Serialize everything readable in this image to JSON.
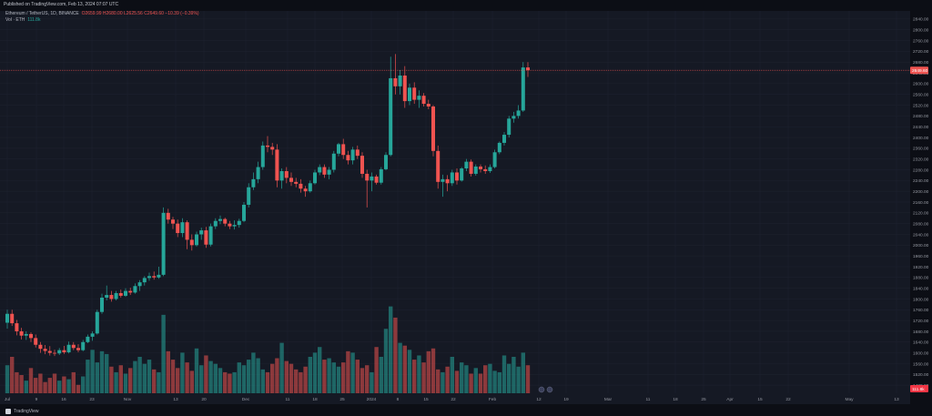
{
  "header": {
    "published": "Published on TradingView.com, Feb 13, 2024 07:07 UTC"
  },
  "legend": {
    "symbol": "Ethereum / TetherUS, 1D, BINANCE",
    "ohlc": "O2659.99 H2680.00 L2625.56 C2649.60 −10.39 (−0.39%)",
    "volume_label": "Vol · ETH",
    "volume_value": "111.8k"
  },
  "footer": {
    "brand": "TradingView"
  },
  "colors": {
    "up": "#26a69a",
    "down": "#ef5350",
    "bg": "#151924",
    "grid": "#1f2330",
    "axis_text": "#9598a1",
    "price_line": "#ef5350"
  },
  "chart_data": {
    "type": "candlestick",
    "y_axis_ticks": [
      1480,
      1520,
      1560,
      1600,
      1640,
      1680,
      1720,
      1760,
      1800,
      1840,
      1880,
      1920,
      1960,
      2000,
      2040,
      2080,
      2120,
      2160,
      2200,
      2240,
      2280,
      2320,
      2360,
      2400,
      2440,
      2480,
      2520,
      2560,
      2600,
      2640,
      2680,
      2720,
      2760,
      2800,
      2840
    ],
    "ylim": [
      1450,
      2870
    ],
    "x_axis_ticks": [
      "Jul",
      "9",
      "16",
      "23",
      "Nov",
      "13",
      "20",
      "Dec",
      "11",
      "18",
      "25",
      "2024",
      "8",
      "15",
      "22",
      "Feb",
      "12",
      "19",
      "Mar",
      "11",
      "18",
      "25",
      "Apr",
      "15",
      "22",
      "May",
      "13"
    ],
    "last_price_label": "2649.60",
    "volume_label": "111.8k",
    "candles": [
      {
        "o": 1712,
        "h": 1760,
        "l": 1690,
        "c": 1745
      },
      {
        "o": 1745,
        "h": 1760,
        "l": 1700,
        "c": 1710
      },
      {
        "o": 1710,
        "h": 1722,
        "l": 1665,
        "c": 1680
      },
      {
        "o": 1680,
        "h": 1693,
        "l": 1650,
        "c": 1664
      },
      {
        "o": 1664,
        "h": 1680,
        "l": 1648,
        "c": 1670
      },
      {
        "o": 1670,
        "h": 1676,
        "l": 1640,
        "c": 1655
      },
      {
        "o": 1655,
        "h": 1668,
        "l": 1620,
        "c": 1630
      },
      {
        "o": 1630,
        "h": 1640,
        "l": 1600,
        "c": 1615
      },
      {
        "o": 1615,
        "h": 1629,
        "l": 1595,
        "c": 1607
      },
      {
        "o": 1607,
        "h": 1625,
        "l": 1590,
        "c": 1600
      },
      {
        "o": 1600,
        "h": 1612,
        "l": 1588,
        "c": 1598
      },
      {
        "o": 1598,
        "h": 1618,
        "l": 1592,
        "c": 1610
      },
      {
        "o": 1610,
        "h": 1626,
        "l": 1596,
        "c": 1602
      },
      {
        "o": 1602,
        "h": 1642,
        "l": 1598,
        "c": 1630
      },
      {
        "o": 1630,
        "h": 1640,
        "l": 1610,
        "c": 1618
      },
      {
        "o": 1618,
        "h": 1632,
        "l": 1602,
        "c": 1610
      },
      {
        "o": 1610,
        "h": 1648,
        "l": 1606,
        "c": 1640
      },
      {
        "o": 1640,
        "h": 1668,
        "l": 1636,
        "c": 1660
      },
      {
        "o": 1660,
        "h": 1680,
        "l": 1645,
        "c": 1672
      },
      {
        "o": 1672,
        "h": 1760,
        "l": 1668,
        "c": 1752
      },
      {
        "o": 1752,
        "h": 1820,
        "l": 1745,
        "c": 1805
      },
      {
        "o": 1805,
        "h": 1850,
        "l": 1795,
        "c": 1815
      },
      {
        "o": 1815,
        "h": 1830,
        "l": 1790,
        "c": 1800
      },
      {
        "o": 1800,
        "h": 1830,
        "l": 1795,
        "c": 1822
      },
      {
        "o": 1822,
        "h": 1835,
        "l": 1805,
        "c": 1812
      },
      {
        "o": 1812,
        "h": 1840,
        "l": 1808,
        "c": 1830
      },
      {
        "o": 1830,
        "h": 1842,
        "l": 1815,
        "c": 1824
      },
      {
        "o": 1824,
        "h": 1858,
        "l": 1820,
        "c": 1848
      },
      {
        "o": 1848,
        "h": 1870,
        "l": 1830,
        "c": 1862
      },
      {
        "o": 1862,
        "h": 1885,
        "l": 1850,
        "c": 1878
      },
      {
        "o": 1878,
        "h": 1898,
        "l": 1868,
        "c": 1885
      },
      {
        "o": 1885,
        "h": 1902,
        "l": 1872,
        "c": 1880
      },
      {
        "o": 1880,
        "h": 1920,
        "l": 1875,
        "c": 1890
      },
      {
        "o": 1890,
        "h": 2140,
        "l": 1885,
        "c": 2120
      },
      {
        "o": 2120,
        "h": 2135,
        "l": 2080,
        "c": 2095
      },
      {
        "o": 2095,
        "h": 2105,
        "l": 2060,
        "c": 2080
      },
      {
        "o": 2080,
        "h": 2095,
        "l": 2030,
        "c": 2045
      },
      {
        "o": 2045,
        "h": 2100,
        "l": 2030,
        "c": 2085
      },
      {
        "o": 2085,
        "h": 2092,
        "l": 1985,
        "c": 2020
      },
      {
        "o": 2020,
        "h": 2040,
        "l": 1980,
        "c": 2000
      },
      {
        "o": 2000,
        "h": 2050,
        "l": 1995,
        "c": 2040
      },
      {
        "o": 2040,
        "h": 2065,
        "l": 2020,
        "c": 2055
      },
      {
        "o": 2055,
        "h": 2068,
        "l": 1990,
        "c": 2002
      },
      {
        "o": 2002,
        "h": 2080,
        "l": 1995,
        "c": 2070
      },
      {
        "o": 2070,
        "h": 2100,
        "l": 2060,
        "c": 2090
      },
      {
        "o": 2090,
        "h": 2110,
        "l": 2078,
        "c": 2097
      },
      {
        "o": 2097,
        "h": 2102,
        "l": 2070,
        "c": 2080
      },
      {
        "o": 2080,
        "h": 2090,
        "l": 2060,
        "c": 2070
      },
      {
        "o": 2070,
        "h": 2092,
        "l": 2058,
        "c": 2075
      },
      {
        "o": 2075,
        "h": 2098,
        "l": 2065,
        "c": 2090
      },
      {
        "o": 2090,
        "h": 2160,
        "l": 2085,
        "c": 2150
      },
      {
        "o": 2150,
        "h": 2230,
        "l": 2140,
        "c": 2215
      },
      {
        "o": 2215,
        "h": 2270,
        "l": 2205,
        "c": 2245
      },
      {
        "o": 2245,
        "h": 2310,
        "l": 2230,
        "c": 2290
      },
      {
        "o": 2290,
        "h": 2385,
        "l": 2280,
        "c": 2370
      },
      {
        "o": 2370,
        "h": 2405,
        "l": 2345,
        "c": 2365
      },
      {
        "o": 2365,
        "h": 2380,
        "l": 2335,
        "c": 2355
      },
      {
        "o": 2355,
        "h": 2375,
        "l": 2215,
        "c": 2240
      },
      {
        "o": 2240,
        "h": 2285,
        "l": 2210,
        "c": 2275
      },
      {
        "o": 2275,
        "h": 2290,
        "l": 2230,
        "c": 2250
      },
      {
        "o": 2250,
        "h": 2270,
        "l": 2220,
        "c": 2235
      },
      {
        "o": 2235,
        "h": 2250,
        "l": 2215,
        "c": 2228
      },
      {
        "o": 2228,
        "h": 2245,
        "l": 2195,
        "c": 2210
      },
      {
        "o": 2210,
        "h": 2220,
        "l": 2180,
        "c": 2200
      },
      {
        "o": 2200,
        "h": 2240,
        "l": 2195,
        "c": 2230
      },
      {
        "o": 2230,
        "h": 2280,
        "l": 2225,
        "c": 2270
      },
      {
        "o": 2270,
        "h": 2300,
        "l": 2260,
        "c": 2290
      },
      {
        "o": 2290,
        "h": 2300,
        "l": 2250,
        "c": 2262
      },
      {
        "o": 2262,
        "h": 2290,
        "l": 2245,
        "c": 2280
      },
      {
        "o": 2280,
        "h": 2350,
        "l": 2270,
        "c": 2340
      },
      {
        "o": 2340,
        "h": 2380,
        "l": 2330,
        "c": 2375
      },
      {
        "o": 2375,
        "h": 2395,
        "l": 2320,
        "c": 2335
      },
      {
        "o": 2335,
        "h": 2350,
        "l": 2300,
        "c": 2315
      },
      {
        "o": 2315,
        "h": 2365,
        "l": 2300,
        "c": 2355
      },
      {
        "o": 2355,
        "h": 2370,
        "l": 2320,
        "c": 2332
      },
      {
        "o": 2332,
        "h": 2345,
        "l": 2250,
        "c": 2265
      },
      {
        "o": 2265,
        "h": 2280,
        "l": 2140,
        "c": 2240
      },
      {
        "o": 2240,
        "h": 2270,
        "l": 2200,
        "c": 2255
      },
      {
        "o": 2255,
        "h": 2262,
        "l": 2225,
        "c": 2232
      },
      {
        "o": 2232,
        "h": 2290,
        "l": 2225,
        "c": 2282
      },
      {
        "o": 2282,
        "h": 2345,
        "l": 2278,
        "c": 2335
      },
      {
        "o": 2335,
        "h": 2700,
        "l": 2330,
        "c": 2620
      },
      {
        "o": 2620,
        "h": 2710,
        "l": 2560,
        "c": 2590
      },
      {
        "o": 2590,
        "h": 2650,
        "l": 2560,
        "c": 2630
      },
      {
        "o": 2630,
        "h": 2665,
        "l": 2510,
        "c": 2535
      },
      {
        "o": 2535,
        "h": 2600,
        "l": 2520,
        "c": 2585
      },
      {
        "o": 2585,
        "h": 2605,
        "l": 2525,
        "c": 2540
      },
      {
        "o": 2540,
        "h": 2575,
        "l": 2510,
        "c": 2555
      },
      {
        "o": 2555,
        "h": 2565,
        "l": 2515,
        "c": 2525
      },
      {
        "o": 2525,
        "h": 2540,
        "l": 2505,
        "c": 2515
      },
      {
        "o": 2515,
        "h": 2520,
        "l": 2330,
        "c": 2350
      },
      {
        "o": 2350,
        "h": 2370,
        "l": 2210,
        "c": 2235
      },
      {
        "o": 2235,
        "h": 2262,
        "l": 2180,
        "c": 2245
      },
      {
        "o": 2245,
        "h": 2260,
        "l": 2200,
        "c": 2230
      },
      {
        "o": 2230,
        "h": 2280,
        "l": 2220,
        "c": 2270
      },
      {
        "o": 2270,
        "h": 2285,
        "l": 2225,
        "c": 2240
      },
      {
        "o": 2240,
        "h": 2290,
        "l": 2236,
        "c": 2285
      },
      {
        "o": 2285,
        "h": 2320,
        "l": 2275,
        "c": 2310
      },
      {
        "o": 2310,
        "h": 2318,
        "l": 2255,
        "c": 2265
      },
      {
        "o": 2265,
        "h": 2300,
        "l": 2258,
        "c": 2292
      },
      {
        "o": 2292,
        "h": 2300,
        "l": 2270,
        "c": 2282
      },
      {
        "o": 2282,
        "h": 2296,
        "l": 2265,
        "c": 2275
      },
      {
        "o": 2275,
        "h": 2300,
        "l": 2268,
        "c": 2290
      },
      {
        "o": 2290,
        "h": 2355,
        "l": 2285,
        "c": 2345
      },
      {
        "o": 2345,
        "h": 2385,
        "l": 2338,
        "c": 2380
      },
      {
        "o": 2380,
        "h": 2420,
        "l": 2370,
        "c": 2410
      },
      {
        "o": 2410,
        "h": 2480,
        "l": 2400,
        "c": 2470
      },
      {
        "o": 2470,
        "h": 2495,
        "l": 2455,
        "c": 2480
      },
      {
        "o": 2480,
        "h": 2520,
        "l": 2470,
        "c": 2500
      },
      {
        "o": 2500,
        "h": 2680,
        "l": 2495,
        "c": 2660
      },
      {
        "o": 2660,
        "h": 2680,
        "l": 2625,
        "c": 2650
      }
    ],
    "volumes": [
      40,
      52,
      30,
      26,
      18,
      36,
      22,
      28,
      16,
      22,
      28,
      18,
      24,
      20,
      30,
      12,
      24,
      48,
      62,
      44,
      60,
      56,
      38,
      30,
      40,
      28,
      36,
      46,
      52,
      42,
      48,
      34,
      30,
      112,
      60,
      48,
      36,
      58,
      44,
      32,
      64,
      40,
      54,
      46,
      42,
      36,
      30,
      28,
      30,
      44,
      40,
      48,
      58,
      50,
      34,
      30,
      42,
      50,
      72,
      46,
      42,
      34,
      30,
      38,
      52,
      58,
      66,
      48,
      50,
      44,
      38,
      44,
      60,
      58,
      48,
      36,
      40,
      30,
      66,
      52,
      92,
      124,
      108,
      72,
      68,
      62,
      48,
      54,
      44,
      60,
      64,
      34,
      30,
      38,
      52,
      32,
      44,
      40,
      28,
      36,
      28,
      40,
      42,
      32,
      30,
      54,
      42,
      52,
      38,
      58,
      40
    ]
  }
}
